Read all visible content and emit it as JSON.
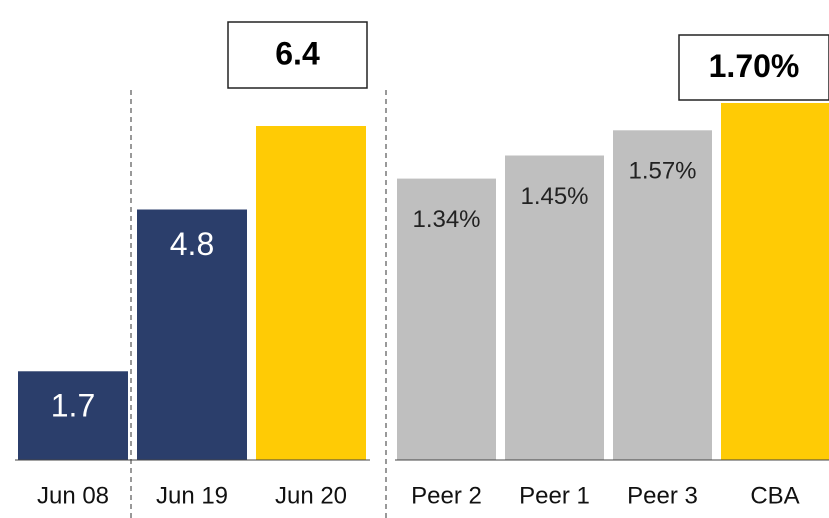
{
  "chart_data": [
    {
      "type": "bar",
      "categories": [
        "Jun 08",
        "Jun 19",
        "Jun 20"
      ],
      "values": [
        1.7,
        4.8,
        6.4
      ],
      "colors": [
        "#2b3e6b",
        "#2b3e6b",
        "#ffcb05"
      ]
    },
    {
      "type": "bar",
      "categories": [
        "Peer 2",
        "Peer 1",
        "Peer 3",
        "CBA"
      ],
      "values": [
        1.34,
        1.45,
        1.57,
        1.7
      ],
      "value_labels": [
        "1.34%",
        "1.45%",
        "1.57%",
        "1.70%"
      ],
      "colors": [
        "#bfbfbf",
        "#bfbfbf",
        "#bfbfbf",
        "#ffcb05"
      ]
    }
  ]
}
